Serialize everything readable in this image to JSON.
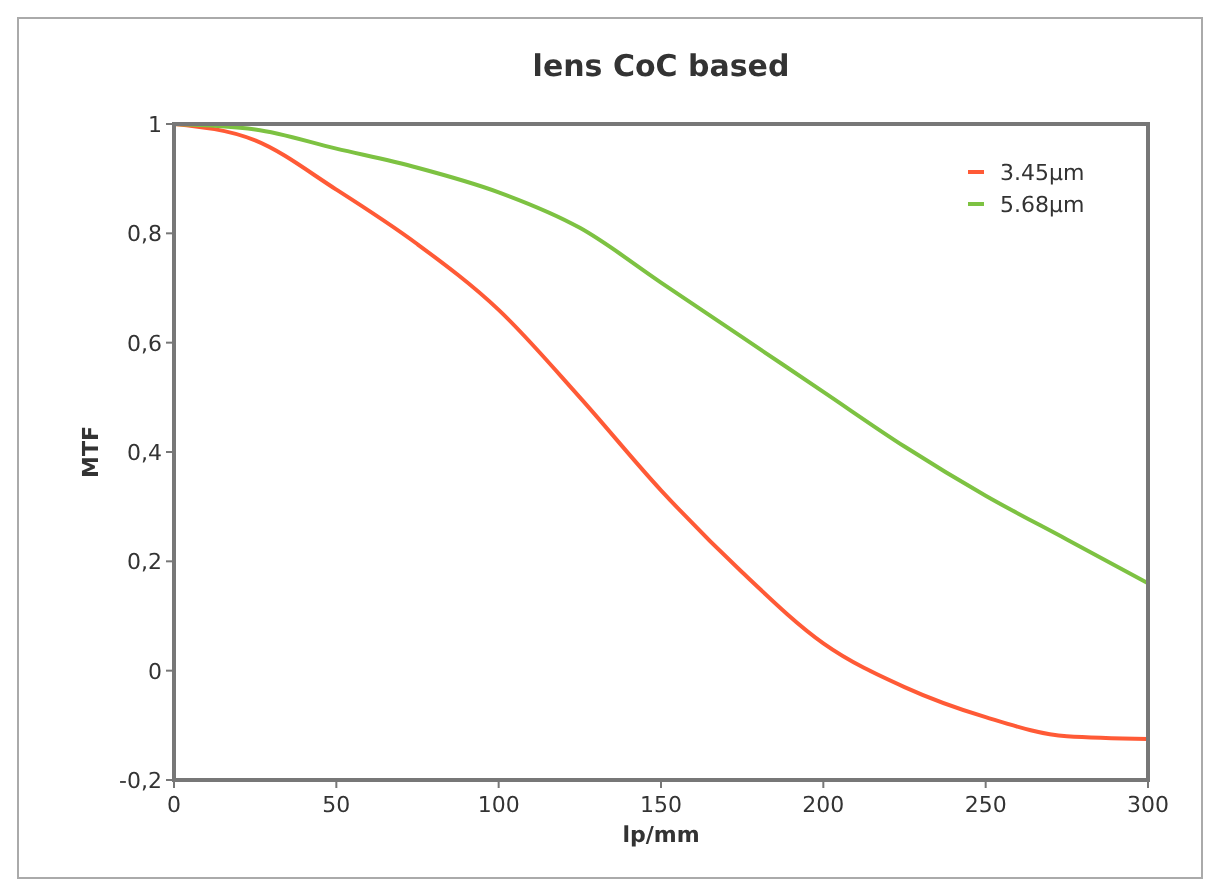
{
  "chart_data": {
    "type": "line",
    "title": "lens CoC based",
    "xlabel": "lp/mm",
    "ylabel": "MTF",
    "x": [
      0,
      25,
      50,
      75,
      100,
      125,
      150,
      175,
      200,
      225,
      250,
      275,
      300
    ],
    "series": [
      {
        "name": "3.45µm",
        "color": "#ff5a36",
        "values": [
          1,
          0.97,
          0.88,
          0.78,
          0.66,
          0.5,
          0.33,
          0.18,
          0.05,
          -0.03,
          -0.085,
          -0.12,
          -0.125
        ]
      },
      {
        "name": "5.68µm",
        "color": "#7dc242",
        "values": [
          1,
          0.99,
          0.955,
          0.92,
          0.875,
          0.81,
          0.71,
          0.61,
          0.51,
          0.41,
          0.32,
          0.24,
          0.16
        ]
      }
    ],
    "xlim": [
      0,
      300
    ],
    "xticks": [
      0,
      50,
      100,
      150,
      200,
      250,
      300
    ],
    "ylim": [
      -0.2,
      1
    ],
    "yticks": [
      {
        "value": -0.2,
        "label": "-0,2"
      },
      {
        "value": 0,
        "label": "0"
      },
      {
        "value": 0.2,
        "label": "0,2"
      },
      {
        "value": 0.4,
        "label": "0,4"
      },
      {
        "value": 0.6,
        "label": "0,6"
      },
      {
        "value": 0.8,
        "label": "0,8"
      },
      {
        "value": 1,
        "label": "1"
      }
    ],
    "grid": false,
    "legend": "top right",
    "marker": "none",
    "line_style": "solid"
  }
}
